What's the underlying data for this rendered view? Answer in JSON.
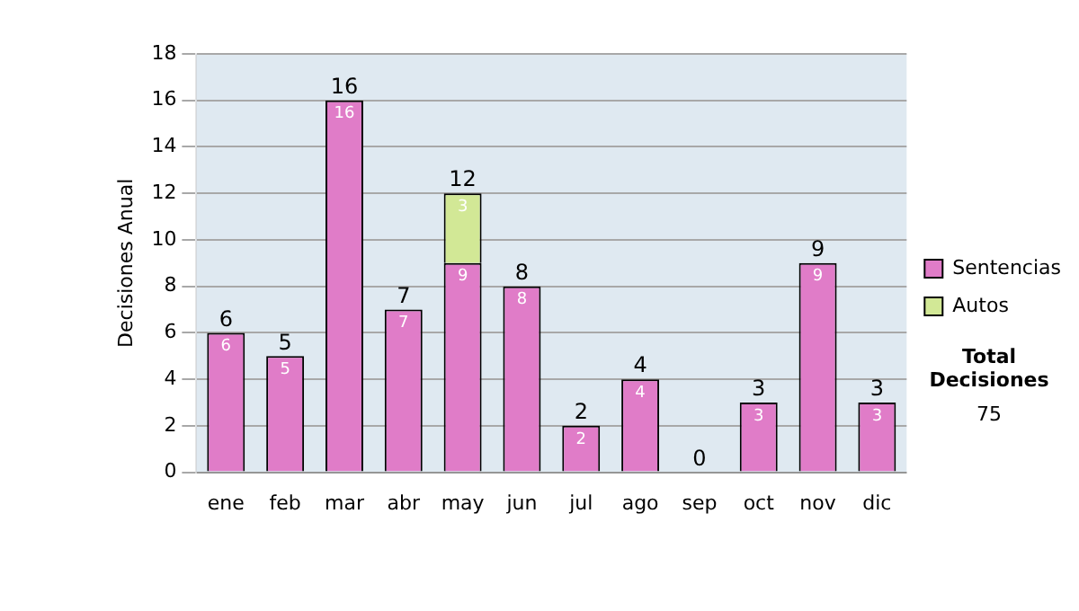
{
  "chart_data": {
    "type": "bar",
    "stacked": true,
    "ylabel": "Decisiones Anual",
    "categories": [
      "ene",
      "feb",
      "mar",
      "abr",
      "may",
      "jun",
      "jul",
      "ago",
      "sep",
      "oct",
      "nov",
      "dic"
    ],
    "series": [
      {
        "name": "Sentencias",
        "color": "#e07cc8",
        "values": [
          6,
          5,
          16,
          7,
          9,
          8,
          2,
          4,
          0,
          3,
          9,
          3
        ],
        "value_labels": [
          "6",
          "5",
          "16",
          "7",
          "9",
          "8",
          "2",
          "4",
          null,
          "3",
          "9",
          "3"
        ]
      },
      {
        "name": "Autos",
        "color": "#d2e896",
        "values": [
          0,
          0,
          0,
          0,
          3,
          0,
          0,
          0,
          0,
          0,
          0,
          0
        ],
        "value_labels": [
          null,
          null,
          null,
          null,
          "3",
          null,
          null,
          null,
          null,
          null,
          null,
          null
        ]
      }
    ],
    "totals": [
      "6",
      "5",
      "16",
      "7",
      "12",
      "8",
      "2",
      "4",
      "0",
      "3",
      "9",
      "3"
    ],
    "ylim": [
      0,
      18
    ],
    "yticks": [
      0,
      2,
      4,
      6,
      8,
      10,
      12,
      14,
      16,
      18
    ],
    "grid": "y",
    "legend": "right",
    "annotations": [
      "Total Decisiones",
      "75"
    ]
  }
}
